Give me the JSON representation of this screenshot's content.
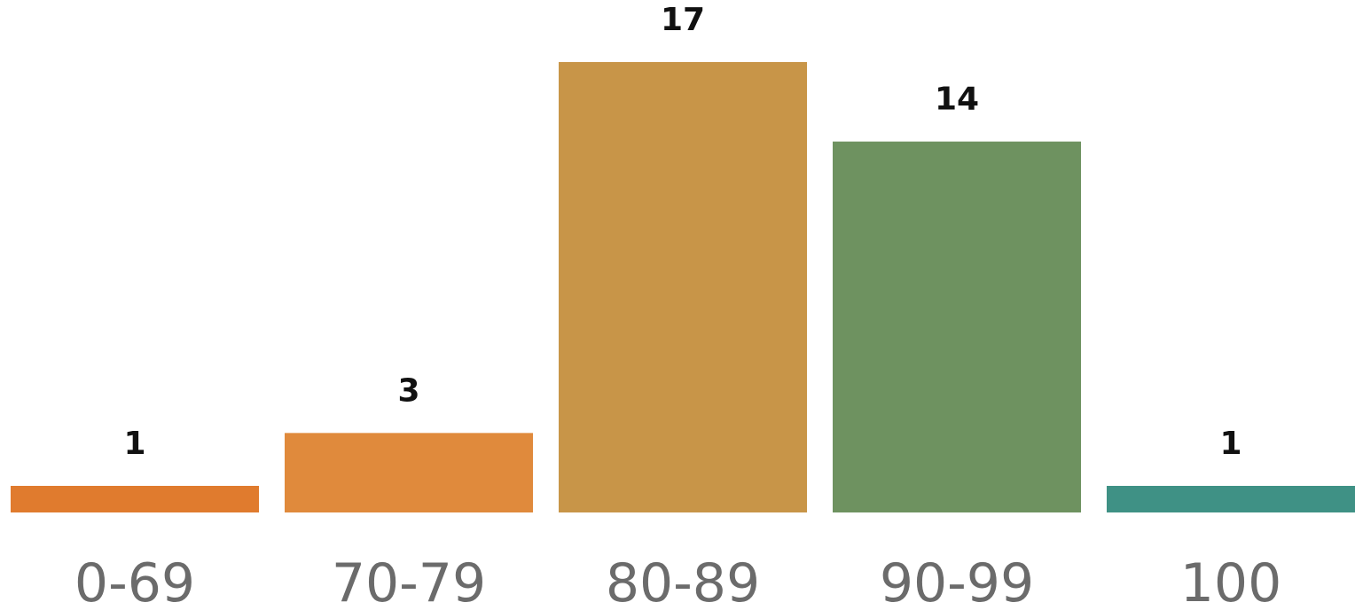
{
  "chart_data": {
    "type": "bar",
    "categories": [
      "0-69",
      "70-79",
      "80-89",
      "90-99",
      "100"
    ],
    "values": [
      1,
      3,
      17,
      14,
      1
    ],
    "data_labels": [
      "1",
      "3",
      "17",
      "14",
      "1"
    ],
    "colors": [
      "#e07b2e",
      "#e08a3c",
      "#c89548",
      "#6e9260",
      "#3f9185"
    ],
    "title": "",
    "xlabel": "",
    "ylabel": "",
    "ylim": [
      0,
      17
    ],
    "grid": false,
    "legend": "none"
  }
}
